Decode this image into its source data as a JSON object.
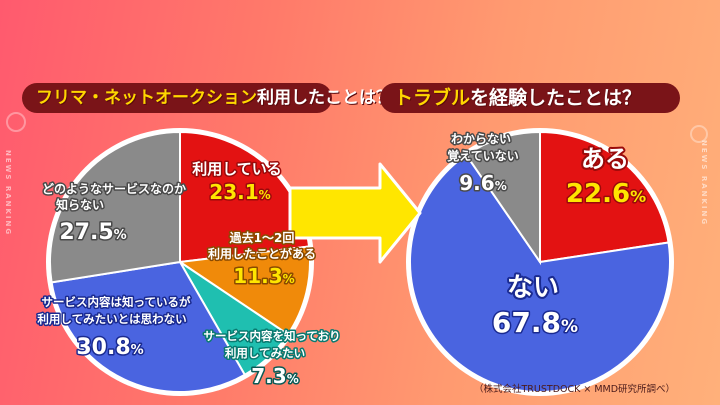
{
  "title_left": {
    "part1": "フリマ・ネットオークション",
    "part2": "利用したことは？"
  },
  "title_right": {
    "part1": "トラブル",
    "part2": "を",
    "part3": "経験したことは？"
  },
  "source": "（株式会社TRUSTDOCK × MMD研究所調べ）",
  "side_text": "NEWS RANKING",
  "chart_data": [
    {
      "type": "pie",
      "title": "フリマ・ネットオークション利用したことは？",
      "slices": [
        {
          "label": "利用している",
          "value": 23.1,
          "color": "#e31212"
        },
        {
          "label": "過去1〜2回利用したことがある",
          "label_lines": [
            "過去1〜2回",
            "利用したことがある"
          ],
          "value": 11.3,
          "color": "#f08a0a"
        },
        {
          "label": "サービス内容を知っており利用してみたい",
          "label_lines": [
            "サービス内容を知っており",
            "利用してみたい"
          ],
          "value": 7.3,
          "color": "#1fbfb0"
        },
        {
          "label": "サービス内容は知っているが利用してみたいとは思わない",
          "label_lines": [
            "サービス内容は知っているが",
            "利用してみたいとは思わない"
          ],
          "value": 30.8,
          "color": "#4a64e0"
        },
        {
          "label": "どのようなサービスなのか知らない",
          "label_lines": [
            "どのようなサービスなのか",
            "知らない"
          ],
          "value": 27.5,
          "color": "#8a8a8a"
        }
      ]
    },
    {
      "type": "pie",
      "title": "トラブルを経験したことは？",
      "slices": [
        {
          "label": "ある",
          "value": 22.6,
          "color": "#e31212"
        },
        {
          "label": "ない",
          "value": 67.8,
          "color": "#4a64e0"
        },
        {
          "label": "わからない覚えていない",
          "label_lines": [
            "わからない",
            "覚えていない"
          ],
          "value": 9.6,
          "color": "#8a8a8a"
        }
      ]
    }
  ]
}
